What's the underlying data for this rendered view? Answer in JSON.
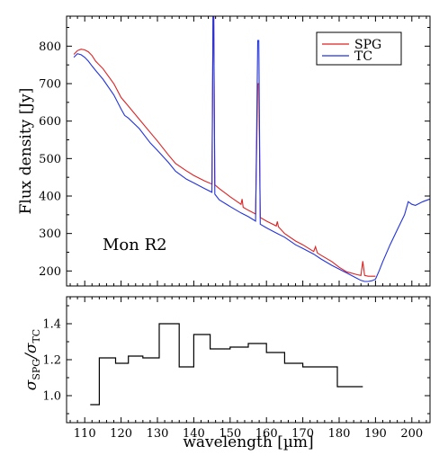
{
  "chart_data": [
    {
      "type": "line",
      "annotation": "Mon R2",
      "xlim": [
        105,
        205
      ],
      "ylim": [
        160,
        880
      ],
      "ylabel": "Flux density [Jy]",
      "yticks": [
        200,
        300,
        400,
        500,
        600,
        700,
        800
      ],
      "grid": false,
      "legend": {
        "placement": "top-right"
      },
      "colors": {
        "SPG": "#dd2222",
        "TC": "#2233dd"
      },
      "series": [
        {
          "name": "SPG",
          "x": [
            107,
            108,
            109,
            110,
            111,
            112,
            113,
            115,
            118,
            120,
            122,
            125,
            128,
            130,
            133,
            135,
            138,
            140,
            143,
            145,
            145.3,
            145.5,
            145.8,
            147,
            150,
            153,
            153.3,
            153.6,
            155,
            157,
            157.6,
            157.9,
            158.3,
            160,
            162.7,
            163,
            163.3,
            165,
            168,
            170,
            173,
            173.5,
            174,
            175,
            178,
            180,
            182,
            185,
            186,
            186.5,
            187,
            188,
            190
          ],
          "y": [
            778,
            788,
            792,
            790,
            785,
            775,
            760,
            740,
            700,
            663,
            640,
            605,
            570,
            547,
            510,
            487,
            467,
            455,
            440,
            432,
            880,
            880,
            430,
            420,
            398,
            378,
            392,
            370,
            362,
            352,
            700,
            700,
            343,
            333,
            320,
            332,
            318,
            300,
            280,
            270,
            252,
            265,
            248,
            242,
            225,
            210,
            198,
            190,
            188,
            226,
            188,
            186,
            186
          ]
        },
        {
          "name": "TC",
          "x": [
            107,
            108,
            109,
            110,
            111,
            112,
            113,
            115,
            118,
            120,
            121,
            122,
            125,
            128,
            130,
            133,
            135,
            138,
            140,
            143,
            145,
            145.3,
            145.5,
            145.8,
            147,
            150,
            153,
            155,
            157,
            157.6,
            157.9,
            158.3,
            160,
            163,
            165,
            168,
            170,
            173,
            175,
            178,
            180,
            182,
            185,
            186,
            187,
            188,
            189,
            190,
            191,
            192,
            194,
            196,
            198,
            199,
            200,
            201,
            203,
            205
          ],
          "y": [
            770,
            780,
            777,
            770,
            760,
            747,
            735,
            712,
            670,
            632,
            615,
            608,
            580,
            542,
            522,
            490,
            466,
            445,
            435,
            420,
            410,
            880,
            880,
            405,
            390,
            372,
            355,
            345,
            333,
            815,
            815,
            325,
            315,
            300,
            290,
            270,
            260,
            245,
            232,
            215,
            205,
            195,
            180,
            175,
            172,
            172,
            174,
            178,
            200,
            225,
            270,
            310,
            350,
            385,
            378,
            375,
            385,
            392
          ]
        }
      ]
    },
    {
      "type": "line",
      "xlabel": "wavelength [µm]",
      "ylabel": "σSPG/σTC",
      "xlim": [
        105,
        205
      ],
      "ylim": [
        0.85,
        1.55
      ],
      "xticks": [
        110,
        120,
        130,
        140,
        150,
        160,
        170,
        180,
        190,
        200
      ],
      "yticks": [
        1.0,
        1.2,
        1.4
      ],
      "grid": false,
      "series": [
        {
          "step": "post",
          "x": [
            111.5,
            114,
            118.5,
            122,
            126,
            130.5,
            136,
            140,
            144.5,
            150,
            155,
            160,
            165,
            170,
            175,
            179.5,
            184.5,
            186.5
          ],
          "y": [
            0.95,
            1.21,
            1.18,
            1.22,
            1.21,
            1.4,
            1.16,
            1.34,
            1.26,
            1.27,
            1.29,
            1.24,
            1.18,
            1.16,
            1.16,
            1.05,
            1.05,
            1.05
          ]
        }
      ]
    }
  ]
}
